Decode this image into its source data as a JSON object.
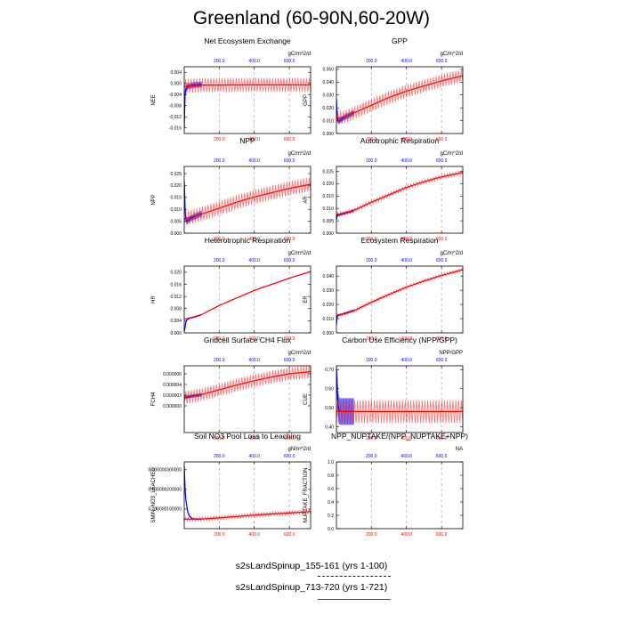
{
  "figure": {
    "title": "Greenland (60-90N,60-20W)"
  },
  "legend": {
    "entries": [
      {
        "label": "s2sLandSpinup_155-161 (yrs 1-100)",
        "color": "#0000ff",
        "style": "dashed"
      },
      {
        "label": "s2sLandSpinup_713-720 (yrs 1-721)",
        "color": "#ff0000",
        "style": "solid"
      }
    ]
  },
  "chart_data": [
    {
      "type": "line",
      "title": "Net Ecosystem Exchange",
      "ylabel": "NEE",
      "units": "gC/m^2/d",
      "xlim": [
        1,
        721
      ],
      "ylim": [
        -0.018,
        0.006
      ],
      "yticks": [
        {
          "v": 0.004,
          "t": "0.004"
        },
        {
          "v": 0.0,
          "t": "0.000"
        },
        {
          "v": -0.004,
          "t": "-0.004"
        },
        {
          "v": -0.008,
          "t": "-0.008"
        },
        {
          "v": -0.012,
          "t": "-0.012"
        },
        {
          "v": -0.016,
          "t": "-0.016"
        }
      ],
      "xticks_bottom": [
        "200.0",
        "400.0",
        "600.0"
      ],
      "xticks_top": [
        "200.0",
        "400.0",
        "600.0"
      ],
      "series": [
        {
          "name": "s2sLandSpinup_155-161 (yrs 1-100)",
          "color": "#0000ff",
          "x": [
            1,
            2,
            4,
            6,
            8,
            10,
            15,
            20,
            30,
            40,
            50,
            60,
            70,
            80,
            90,
            100
          ],
          "y": [
            -0.016,
            -0.013,
            -0.008,
            -0.004,
            -0.003,
            -0.002,
            -0.0015,
            -0.001,
            -0.001,
            -0.0008,
            -0.0006,
            -0.0006,
            -0.0005,
            -0.0005,
            -0.0004,
            -0.0004
          ],
          "spread": 0.001
        },
        {
          "name": "s2sLandSpinup_713-720 (yrs 1-721)",
          "color": "#ff0000",
          "x": [
            1,
            50,
            100,
            200,
            300,
            400,
            500,
            600,
            721
          ],
          "y": [
            -0.001,
            -0.0008,
            -0.0006,
            -0.0006,
            -0.0005,
            -0.0005,
            -0.0005,
            -0.0005,
            -0.0005
          ],
          "spread": 0.0025
        }
      ]
    },
    {
      "type": "line",
      "title": "GPP",
      "ylabel": "GPP",
      "units": "gC/m^2/d",
      "xlim": [
        1,
        721
      ],
      "ylim": [
        0.0,
        0.052
      ],
      "yticks": [
        {
          "v": 0.0,
          "t": "0.000"
        },
        {
          "v": 0.01,
          "t": "0.010"
        },
        {
          "v": 0.02,
          "t": "0.020"
        },
        {
          "v": 0.03,
          "t": "0.030"
        },
        {
          "v": 0.04,
          "t": "0.040"
        },
        {
          "v": 0.05,
          "t": "0.050"
        }
      ],
      "xticks_bottom": [
        "200.0",
        "400.0",
        "600.0"
      ],
      "xticks_top": [
        "200.0",
        "400.0",
        "600.0"
      ],
      "series": [
        {
          "name": "s2sLandSpinup_155-161 (yrs 1-100)",
          "color": "#0000ff",
          "x": [
            1,
            3,
            6,
            10,
            15,
            20,
            30,
            40,
            50,
            60,
            70,
            80,
            90,
            100
          ],
          "y": [
            0.027,
            0.02,
            0.012,
            0.01,
            0.0095,
            0.01,
            0.011,
            0.012,
            0.0128,
            0.0135,
            0.014,
            0.0148,
            0.0155,
            0.016
          ],
          "spread": 0.002
        },
        {
          "name": "s2sLandSpinup_713-720 (yrs 1-721)",
          "color": "#ff0000",
          "x": [
            1,
            50,
            100,
            200,
            300,
            400,
            500,
            600,
            721
          ],
          "y": [
            0.012,
            0.013,
            0.016,
            0.022,
            0.028,
            0.033,
            0.037,
            0.041,
            0.045
          ],
          "spread": 0.005
        }
      ]
    },
    {
      "type": "line",
      "title": "NPP",
      "ylabel": "NPP",
      "units": "gC/m^2/d",
      "xlim": [
        1,
        721
      ],
      "ylim": [
        0.0,
        0.028
      ],
      "yticks": [
        {
          "v": 0.0,
          "t": "0.000"
        },
        {
          "v": 0.005,
          "t": "0.005"
        },
        {
          "v": 0.01,
          "t": "0.010"
        },
        {
          "v": 0.015,
          "t": "0.015"
        },
        {
          "v": 0.02,
          "t": "0.020"
        },
        {
          "v": 0.025,
          "t": "0.025"
        }
      ],
      "xticks_bottom": [
        "200.0",
        "400.0",
        "600.0"
      ],
      "xticks_top": [
        "200.0",
        "400.0",
        "600.0"
      ],
      "series": [
        {
          "name": "s2sLandSpinup_155-161 (yrs 1-100)",
          "color": "#0000ff",
          "x": [
            1,
            3,
            6,
            10,
            15,
            20,
            30,
            40,
            50,
            60,
            70,
            80,
            90,
            100
          ],
          "y": [
            0.022,
            0.018,
            0.01,
            0.006,
            0.005,
            0.0052,
            0.0058,
            0.0062,
            0.0066,
            0.007,
            0.0073,
            0.0076,
            0.0079,
            0.0082
          ],
          "spread": 0.0012
        },
        {
          "name": "s2sLandSpinup_713-720 (yrs 1-721)",
          "color": "#ff0000",
          "x": [
            1,
            50,
            100,
            200,
            300,
            400,
            500,
            600,
            721
          ],
          "y": [
            0.006,
            0.007,
            0.008,
            0.0105,
            0.013,
            0.0152,
            0.017,
            0.0188,
            0.0205
          ],
          "spread": 0.003
        }
      ]
    },
    {
      "type": "line",
      "title": "Autotrophic Respiration",
      "ylabel": "AR",
      "units": "gC/m^2/d",
      "xlim": [
        1,
        721
      ],
      "ylim": [
        0.0,
        0.027
      ],
      "yticks": [
        {
          "v": 0.0,
          "t": "0.000"
        },
        {
          "v": 0.005,
          "t": "0.005"
        },
        {
          "v": 0.01,
          "t": "0.010"
        },
        {
          "v": 0.015,
          "t": "0.015"
        },
        {
          "v": 0.02,
          "t": "0.020"
        },
        {
          "v": 0.025,
          "t": "0.025"
        }
      ],
      "xticks_bottom": [
        "200.0",
        "400.0",
        "600.0"
      ],
      "xticks_top": [
        "200.0",
        "400.0",
        "600.0"
      ],
      "series": [
        {
          "name": "s2sLandSpinup_155-161 (yrs 1-100)",
          "color": "#0000ff",
          "x": [
            1,
            3,
            6,
            10,
            20,
            30,
            40,
            50,
            60,
            70,
            80,
            90,
            100
          ],
          "y": [
            0.0055,
            0.0062,
            0.007,
            0.0074,
            0.0075,
            0.0077,
            0.0079,
            0.0081,
            0.0083,
            0.0085,
            0.0087,
            0.0089,
            0.0092
          ],
          "spread": 0.0005
        },
        {
          "name": "s2sLandSpinup_713-720 (yrs 1-721)",
          "color": "#ff0000",
          "x": [
            1,
            50,
            100,
            200,
            300,
            400,
            500,
            600,
            721
          ],
          "y": [
            0.0075,
            0.0082,
            0.0092,
            0.0125,
            0.0155,
            0.0185,
            0.0208,
            0.0228,
            0.0245
          ],
          "spread": 0.0008
        }
      ]
    },
    {
      "type": "line",
      "title": "Heterotrophic Respiration",
      "ylabel": "HR",
      "units": "gC/m^2/d",
      "xlim": [
        1,
        721
      ],
      "ylim": [
        0.0,
        0.022
      ],
      "yticks": [
        {
          "v": 0.0,
          "t": "0.000"
        },
        {
          "v": 0.004,
          "t": "0.004"
        },
        {
          "v": 0.008,
          "t": "0.008"
        },
        {
          "v": 0.012,
          "t": "0.012"
        },
        {
          "v": 0.016,
          "t": "0.016"
        },
        {
          "v": 0.02,
          "t": "0.020"
        }
      ],
      "xticks_bottom": [
        "200.0",
        "400.0",
        "600.0"
      ],
      "xticks_top": [
        "200.0",
        "400.0",
        "600.0"
      ],
      "series": [
        {
          "name": "s2sLandSpinup_155-161 (yrs 1-100)",
          "color": "#0000ff",
          "x": [
            1,
            5,
            10,
            20,
            30,
            40,
            50,
            60,
            70,
            80,
            90,
            100
          ],
          "y": [
            0.0005,
            0.0015,
            0.0035,
            0.0045,
            0.0048,
            0.005,
            0.0051,
            0.0052,
            0.0054,
            0.0056,
            0.0058,
            0.006
          ],
          "spread": 0.0002
        },
        {
          "name": "s2sLandSpinup_713-720 (yrs 1-721)",
          "color": "#ff0000",
          "x": [
            1,
            50,
            100,
            200,
            300,
            400,
            500,
            600,
            721
          ],
          "y": [
            0.0045,
            0.0052,
            0.006,
            0.009,
            0.0115,
            0.014,
            0.016,
            0.018,
            0.0202
          ],
          "spread": 0.0001
        }
      ]
    },
    {
      "type": "line",
      "title": "Ecosystem Respiration",
      "ylabel": "ER",
      "units": "gC/m^2/d",
      "xlim": [
        1,
        721
      ],
      "ylim": [
        0.0,
        0.047
      ],
      "yticks": [
        {
          "v": 0.0,
          "t": "0.000"
        },
        {
          "v": 0.01,
          "t": "0.010"
        },
        {
          "v": 0.02,
          "t": "0.020"
        },
        {
          "v": 0.03,
          "t": "0.030"
        },
        {
          "v": 0.04,
          "t": "0.040"
        }
      ],
      "xticks_bottom": [
        "200.0",
        "400.0",
        "600.0"
      ],
      "xticks_top": [
        "200.0",
        "400.0",
        "600.0"
      ],
      "series": [
        {
          "name": "s2sLandSpinup_155-161 (yrs 1-100)",
          "color": "#0000ff",
          "x": [
            1,
            5,
            10,
            20,
            30,
            40,
            50,
            60,
            70,
            80,
            90,
            100
          ],
          "y": [
            0.006,
            0.011,
            0.0125,
            0.0128,
            0.013,
            0.0134,
            0.0138,
            0.0142,
            0.0146,
            0.015,
            0.0154,
            0.0158
          ],
          "spread": 0.0006
        },
        {
          "name": "s2sLandSpinup_713-720 (yrs 1-721)",
          "color": "#ff0000",
          "x": [
            1,
            50,
            100,
            200,
            300,
            400,
            500,
            600,
            721
          ],
          "y": [
            0.012,
            0.0135,
            0.0155,
            0.0215,
            0.027,
            0.0322,
            0.0365,
            0.0405,
            0.0445
          ],
          "spread": 0.001
        }
      ]
    },
    {
      "type": "line",
      "title": "Gridcell Surface CH4 Flux",
      "ylabel": "FCH4",
      "units": "gC/m^2/d",
      "xlim": [
        1,
        721
      ],
      "ylim": [
        -5e-06,
        7.5e-06
      ],
      "yticks": [
        {
          "v": 0.0,
          "t": "0.000000"
        },
        {
          "v": 2e-06,
          "t": "0.000002"
        },
        {
          "v": 4e-06,
          "t": "0.000004"
        },
        {
          "v": 6e-06,
          "t": "0.000006"
        }
      ],
      "xticks_bottom": [
        "200.0",
        "400.0",
        "600.0"
      ],
      "xticks_top": [
        "200.0",
        "400.0",
        "600.0"
      ],
      "series": [
        {
          "name": "s2sLandSpinup_155-161 (yrs 1-100)",
          "color": "#0000ff",
          "x": [
            1,
            10,
            20,
            40,
            60,
            80,
            100
          ],
          "y": [
            1.5e-06,
            1.6e-06,
            1.7e-06,
            1.8e-06,
            1.9e-06,
            2e-06,
            2.1e-06
          ],
          "spread": 3e-07
        },
        {
          "name": "s2sLandSpinup_713-720 (yrs 1-721)",
          "color": "#ff0000",
          "x": [
            1,
            100,
            200,
            300,
            400,
            500,
            600,
            721
          ],
          "y": [
            1.5e-06,
            2.1e-06,
            3e-06,
            3.9e-06,
            4.7e-06,
            5.4e-06,
            6e-06,
            6.4e-06
          ],
          "spread": 1.2e-06
        }
      ]
    },
    {
      "type": "line",
      "title": "Carbon Use Efficiency (NPP/GPP)",
      "ylabel": "CUE",
      "units": "NPP/GPP",
      "xlim": [
        1,
        721
      ],
      "ylim": [
        0.37,
        0.72
      ],
      "yticks": [
        {
          "v": 0.4,
          "t": "0.40"
        },
        {
          "v": 0.5,
          "t": "0.50"
        },
        {
          "v": 0.6,
          "t": "0.60"
        },
        {
          "v": 0.7,
          "t": "0.70"
        }
      ],
      "xticks_bottom": [
        "200.0",
        "400.0",
        "600.0"
      ],
      "xticks_top": [
        "200.0",
        "400.0",
        "600.0"
      ],
      "series": [
        {
          "name": "s2sLandSpinup_155-161 (yrs 1-100)",
          "color": "#0000ff",
          "x": [
            1,
            3,
            6,
            10,
            15,
            20,
            30,
            40,
            50,
            60,
            70,
            80,
            90,
            100
          ],
          "y": [
            0.7,
            0.66,
            0.6,
            0.52,
            0.49,
            0.48,
            0.48,
            0.48,
            0.48,
            0.48,
            0.48,
            0.48,
            0.48,
            0.48
          ],
          "spread": 0.07
        },
        {
          "name": "s2sLandSpinup_713-720 (yrs 1-721)",
          "color": "#ff0000",
          "x": [
            1,
            100,
            200,
            300,
            400,
            500,
            600,
            721
          ],
          "y": [
            0.48,
            0.48,
            0.48,
            0.48,
            0.48,
            0.48,
            0.48,
            0.48
          ],
          "spread": 0.06
        }
      ]
    },
    {
      "type": "line",
      "title": "Soil NO3 Pool Loss to Leaching",
      "ylabel": "SMIN_NO3_LEACHED",
      "units": "gN/m^2/d",
      "xlim": [
        1,
        721
      ],
      "ylim": [
        0.0,
        3.4e-07
      ],
      "yticks": [
        {
          "v": 1e-07,
          "t": "0.000000100000"
        },
        {
          "v": 2e-07,
          "t": "0.000000200000"
        },
        {
          "v": 3e-07,
          "t": "0.000000300000"
        }
      ],
      "xticks_bottom": [
        "200.0",
        "400.0",
        "600.0"
      ],
      "xticks_top": [
        "200.0",
        "400.0",
        "600.0"
      ],
      "series": [
        {
          "name": "s2sLandSpinup_155-161 (yrs 1-100)",
          "color": "#0000ff",
          "x": [
            1,
            3,
            6,
            10,
            20,
            30,
            40,
            50,
            60,
            70,
            80,
            90,
            100
          ],
          "y": [
            3.2e-07,
            2.7e-07,
            2e-07,
            1.5e-07,
            9e-08,
            6.5e-08,
            5.5e-08,
            5e-08,
            4.9e-08,
            4.8e-08,
            4.8e-08,
            4.8e-08,
            4.9e-08
          ],
          "spread": 3e-09
        },
        {
          "name": "s2sLandSpinup_713-720 (yrs 1-721)",
          "color": "#ff0000",
          "x": [
            1,
            100,
            200,
            300,
            400,
            500,
            600,
            721
          ],
          "y": [
            4.8e-08,
            4.9e-08,
            5.5e-08,
            6.2e-08,
            6.9e-08,
            7.5e-08,
            8e-08,
            8.7e-08
          ],
          "spread": 1e-08
        }
      ]
    },
    {
      "type": "line",
      "title": "NPP_NUPTAKE/(NPP_NUPTAKE+NPP)",
      "ylabel": "NUPTAKE_FRACTION",
      "units": "NA",
      "xlim": [
        1,
        721
      ],
      "ylim": [
        0.0,
        1.0
      ],
      "yticks": [
        {
          "v": 0.0,
          "t": "0.0"
        },
        {
          "v": 0.2,
          "t": "0.2"
        },
        {
          "v": 0.4,
          "t": "0.4"
        },
        {
          "v": 0.6,
          "t": "0.6"
        },
        {
          "v": 0.8,
          "t": "0.8"
        },
        {
          "v": 1.0,
          "t": "1.0"
        }
      ],
      "xticks_bottom": [
        "200.0",
        "400.0",
        "600.0"
      ],
      "xticks_top": [
        "200.0",
        "400.0",
        "600.0"
      ],
      "series": []
    }
  ]
}
